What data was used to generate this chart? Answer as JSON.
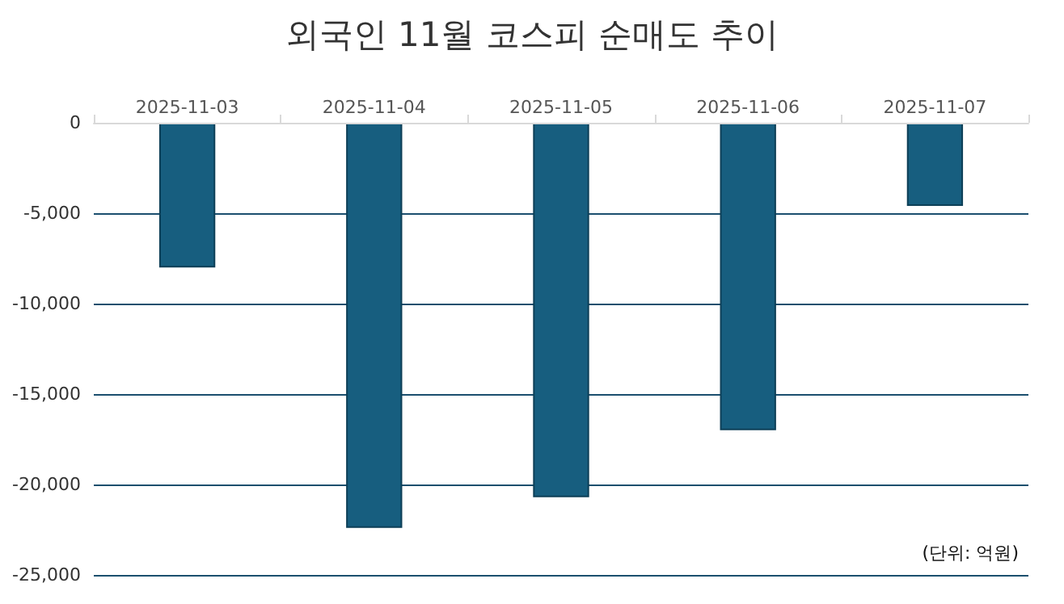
{
  "chart_data": {
    "type": "bar",
    "title": "외국인 11월 코스피 순매도 추이",
    "categories": [
      "2025-11-03",
      "2025-11-04",
      "2025-11-05",
      "2025-11-06",
      "2025-11-07"
    ],
    "values": [
      -8000,
      -22400,
      -20700,
      -17000,
      -4600
    ],
    "color": "#175e7f",
    "ylim": [
      -25000,
      0
    ],
    "yticks": [
      {
        "value": -25000,
        "label": "-25,000"
      },
      {
        "value": -20000,
        "label": "-20,000"
      },
      {
        "value": -15000,
        "label": "-15,000"
      },
      {
        "value": -10000,
        "label": "-10,000"
      },
      {
        "value": -5000,
        "label": "-5,000"
      },
      0
    ],
    "grid": "y",
    "annotations": [
      "(단위: 억원)"
    ]
  }
}
